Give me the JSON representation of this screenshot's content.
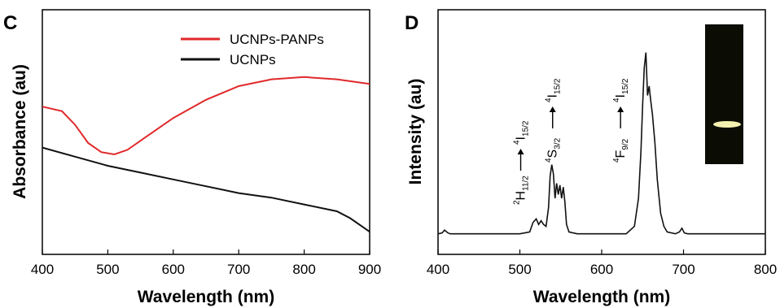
{
  "colors": {
    "red_series": "#e0292b",
    "black_series": "#111111",
    "inset_bg": "#0b0d04",
    "inset_glow": "#f4f0b0"
  },
  "chart_data": [
    {
      "panel": "C",
      "type": "line",
      "xlabel": "Wavelength (nm)",
      "ylabel": "Absorbance (au)",
      "xlim": [
        400,
        900
      ],
      "xticks": [
        "400",
        "500",
        "600",
        "700",
        "800",
        "900"
      ],
      "ylim": [
        0,
        1
      ],
      "grid": false,
      "legend": {
        "placement": "top-right",
        "entries": [
          "UCNPs-PANPs",
          "UCNPs"
        ]
      },
      "series": [
        {
          "name": "UCNPs-PANPs",
          "color": "#e0292b",
          "x": [
            400,
            430,
            450,
            470,
            490,
            510,
            530,
            560,
            600,
            650,
            700,
            750,
            800,
            850,
            900
          ],
          "y": [
            0.61,
            0.59,
            0.53,
            0.45,
            0.41,
            0.4,
            0.42,
            0.48,
            0.56,
            0.64,
            0.7,
            0.73,
            0.74,
            0.73,
            0.71
          ]
        },
        {
          "name": "UCNPs",
          "color": "#111111",
          "x": [
            400,
            450,
            500,
            550,
            600,
            650,
            700,
            750,
            800,
            850,
            870,
            890,
            900
          ],
          "y": [
            0.43,
            0.39,
            0.35,
            0.32,
            0.29,
            0.26,
            0.23,
            0.21,
            0.18,
            0.15,
            0.12,
            0.08,
            0.06
          ]
        }
      ]
    },
    {
      "panel": "D",
      "type": "line",
      "xlabel": "Wavelength (nm)",
      "ylabel": "Intensity (au)",
      "xlim": [
        400,
        800
      ],
      "xticks": [
        "400",
        "500",
        "600",
        "700",
        "800"
      ],
      "ylim": [
        0,
        1
      ],
      "grid": false,
      "series": [
        {
          "color": "#111111",
          "x": [
            400,
            405,
            408,
            412,
            415,
            500,
            512,
            516,
            520,
            523,
            526,
            529,
            532,
            535,
            537,
            539,
            541,
            543,
            545,
            547,
            549,
            551,
            553,
            555,
            557,
            560,
            570,
            600,
            630,
            640,
            645,
            648,
            650,
            652,
            654,
            656,
            658,
            660,
            662,
            665,
            668,
            672,
            676,
            680,
            690,
            695,
            698,
            701,
            705,
            750,
            800
          ],
          "y": [
            0.01,
            0.015,
            0.03,
            0.015,
            0.01,
            0.01,
            0.02,
            0.07,
            0.09,
            0.06,
            0.08,
            0.06,
            0.05,
            0.15,
            0.32,
            0.38,
            0.33,
            0.2,
            0.28,
            0.22,
            0.27,
            0.2,
            0.26,
            0.18,
            0.06,
            0.02,
            0.01,
            0.01,
            0.01,
            0.05,
            0.2,
            0.45,
            0.7,
            0.9,
            0.98,
            0.75,
            0.8,
            0.72,
            0.65,
            0.5,
            0.3,
            0.12,
            0.05,
            0.02,
            0.01,
            0.02,
            0.04,
            0.015,
            0.01,
            0.01,
            0.01
          ]
        }
      ],
      "annotations": [
        {
          "x": 506,
          "lower_main": "H",
          "lower_sup": "2",
          "lower_sub": "11/2",
          "upper_main": "I",
          "upper_sup": "4",
          "upper_sub": "15/2"
        },
        {
          "x": 545,
          "lower_main": "S",
          "lower_sup": "4",
          "lower_sub": "3/2",
          "upper_main": "I",
          "upper_sup": "4",
          "upper_sub": "15/2"
        },
        {
          "x": 628,
          "lower_main": "F",
          "lower_sup": "4",
          "lower_sub": "9/2",
          "upper_main": "I",
          "upper_sup": "4",
          "upper_sub": "15/2"
        }
      ]
    }
  ]
}
